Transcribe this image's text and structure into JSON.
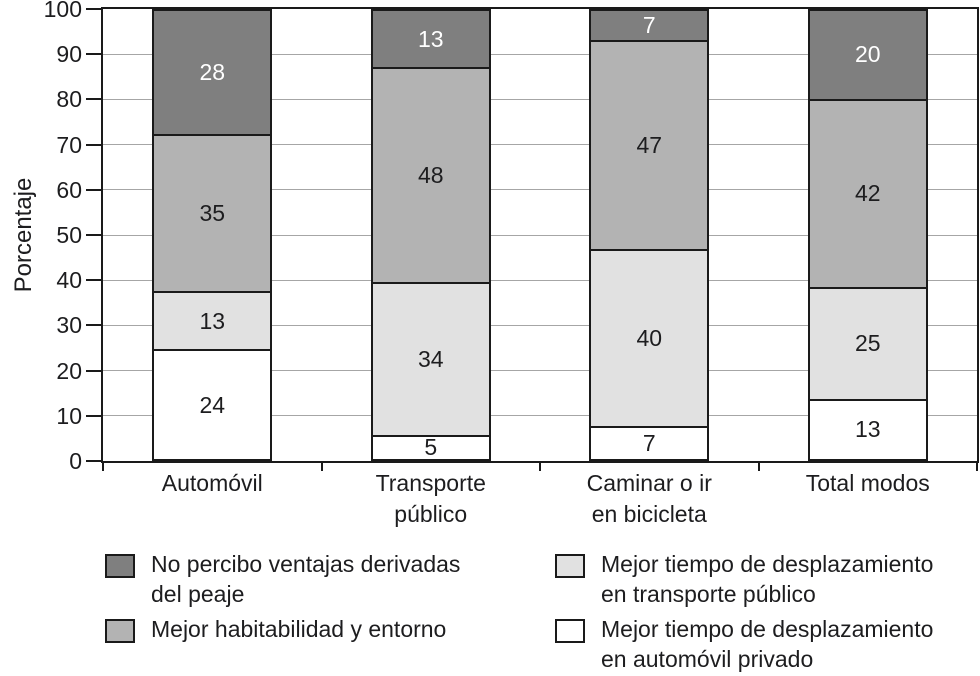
{
  "chart_data": {
    "type": "bar",
    "stacked": true,
    "title": "",
    "xlabel": "",
    "ylabel": "Porcentaje",
    "ylim": [
      0,
      100
    ],
    "yticks": [
      0,
      10,
      20,
      30,
      40,
      50,
      60,
      70,
      80,
      90,
      100
    ],
    "grid": true,
    "legend_position": "bottom",
    "axis_color": "#1a1a1a",
    "gridline_color": "#a6a6a6",
    "categories": [
      "Automóvil",
      "Transporte\npúblico",
      "Caminar o ir\nen bicicleta",
      "Total modos"
    ],
    "series": [
      {
        "name": "Mejor tiempo de desplazamiento en automóvil privado",
        "color": "#ffffff",
        "label_color": "#1d1d1f",
        "values": [
          24,
          5,
          7,
          13
        ]
      },
      {
        "name": "Mejor tiempo de desplazamiento en transporte público",
        "color": "#e1e1e1",
        "label_color": "#1d1d1f",
        "values": [
          13,
          34,
          40,
          25
        ]
      },
      {
        "name": "Mejor habitabilidad y entorno",
        "color": "#b3b3b3",
        "label_color": "#1d1d1f",
        "values": [
          35,
          48,
          47,
          42
        ]
      },
      {
        "name": "No percibo ventajas derivadas del peaje",
        "color": "#7f7f7f",
        "label_color": "#ffffff",
        "values": [
          28,
          13,
          7,
          20
        ]
      }
    ],
    "legend_items": [
      {
        "label": "No percibo ventajas derivadas\ndel peaje",
        "color": "#7f7f7f"
      },
      {
        "label": "Mejor habitabilidad y entorno",
        "color": "#b3b3b3"
      },
      {
        "label": "Mejor tiempo de desplazamiento\nen transporte público",
        "color": "#e1e1e1"
      },
      {
        "label": "Mejor tiempo de desplazamiento\nen automóvil privado",
        "color": "#ffffff"
      }
    ]
  }
}
